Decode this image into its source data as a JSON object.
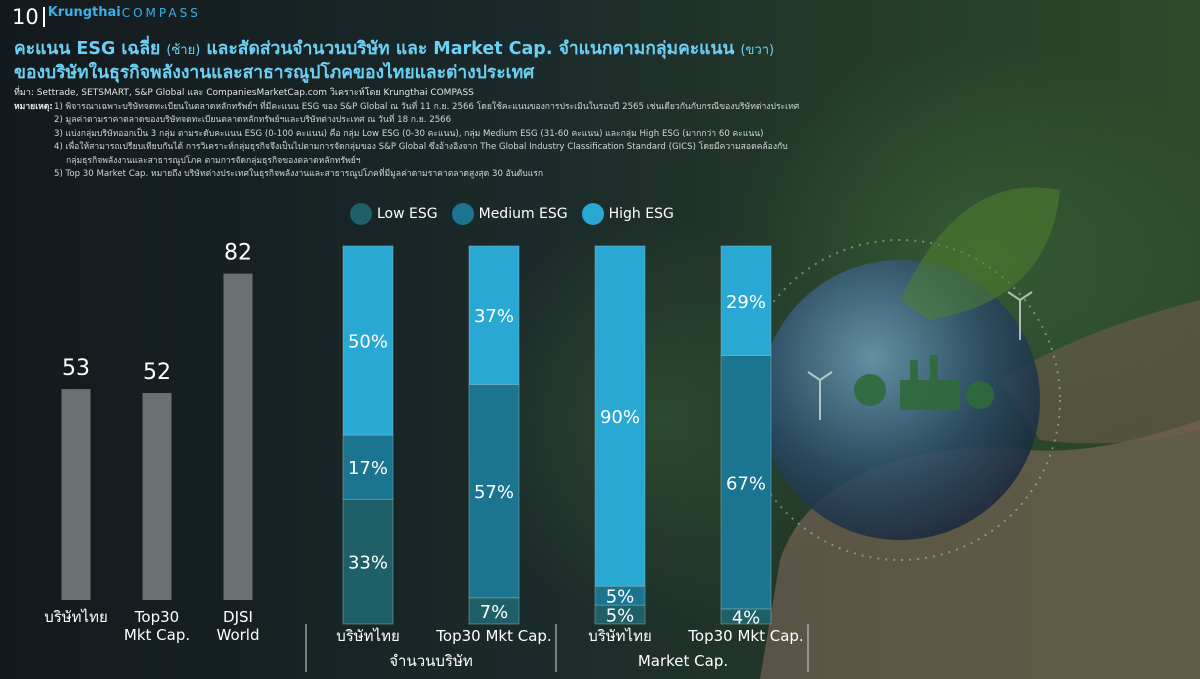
{
  "header": {
    "page_number": "10",
    "brand_name": "Krungthai",
    "brand_product": "COMPASS"
  },
  "title": {
    "line1_a": "คะแนน ESG เฉลี่ย",
    "line1_b": "(ซ้าย)",
    "line1_c": "และสัดส่วนจำนวนบริษัท และ Market Cap. จำแนกตามกลุ่มคะแนน",
    "line1_d": "(ขวา)",
    "line2": "ของบริษัทในธุรกิจพลังงานและสาธารณูปโภคของไทยและต่างประเทศ"
  },
  "source": "ที่มา: Settrade, SETSMART, S&P Global และ CompaniesMarketCap.com วิเคราะห์โดย Krungthai COMPASS",
  "notes": {
    "label": "หมายเหตุ:",
    "items": [
      "1) พิจารณาเฉพาะบริษัทจดทะเบียนในตลาดหลักทรัพย์ฯ ที่มีคะแนน ESG ของ S&P Global ณ วันที่ 11 ก.ย. 2566 โดยใช้คะแนนของการประเมินในรอบปี 2565 เช่นเดียวกันกับกรณีของบริษัทต่างประเทศ",
      "2) มูลค่าตามราคาตลาดของบริษัทจดทะเบียนตลาดหลักทรัพย์ฯและบริษัทต่างประเทศ ณ วันที่ 18 ก.ย. 2566",
      "3) แบ่งกลุ่มบริษัทออกเป็น 3 กลุ่ม ตามระดับคะแนน ESG (0-100 คะแนน) คือ กลุ่ม Low ESG (0-30 คะแนน), กลุ่ม Medium ESG (31-60 คะแนน) และกลุ่ม High ESG (มากกว่า 60 คะแนน)",
      "4) เพื่อให้สามารถเปรียบเทียบกันได้ การวิเคราะห์กลุ่มธุรกิจจึงเป็นไปตามการจัดกลุ่มของ S&P Global ซึ่งอ้างอิงจาก The Global Industry Classification Standard (GICS) โดยมีความสอดคล้องกับ",
      "กลุ่มธุรกิจพลังงานและสาธารณูปโภค ตามการจัดกลุ่มธุรกิจของตลาดหลักทรัพย์ฯ",
      "5) Top 30 Market Cap. หมายถึง บริษัทต่างประเทศในธุรกิจพลังงานและสาธารณูปโภคที่มีมูลค่าตามราคาตลาดสูงสุด 30 อันดับแรก"
    ]
  },
  "colors": {
    "low": "#1f6068",
    "medium": "#1b7590",
    "high": "#2aa8d4",
    "gray_bar": "#808486",
    "title": "#6cd0f4",
    "brand": "#3ab0e6"
  },
  "chart_data": [
    {
      "type": "bar",
      "categories": [
        "บริษัทไทย",
        "Top30\nMkt Cap.",
        "DJSI\nWorld"
      ],
      "values": [
        53,
        52,
        82
      ],
      "ylim": [
        0,
        90
      ]
    },
    {
      "type": "bar",
      "stacked": true,
      "percent": true,
      "legend": [
        "Low ESG",
        "Medium ESG",
        "High ESG"
      ],
      "legend_position": "top",
      "categories": [
        "บริษัทไทย",
        "Top30 Mkt Cap.",
        "บริษัทไทย",
        "Top30 Mkt Cap."
      ],
      "groups": [
        {
          "label": "จำนวนบริษัท",
          "categories": [
            0,
            1
          ]
        },
        {
          "label": "Market Cap.",
          "categories": [
            2,
            3
          ]
        }
      ],
      "series": [
        {
          "name": "Low ESG",
          "values": [
            33,
            7,
            5,
            4
          ]
        },
        {
          "name": "Medium ESG",
          "values": [
            17,
            57,
            5,
            67
          ]
        },
        {
          "name": "High ESG",
          "values": [
            50,
            37,
            90,
            29
          ]
        }
      ]
    }
  ]
}
